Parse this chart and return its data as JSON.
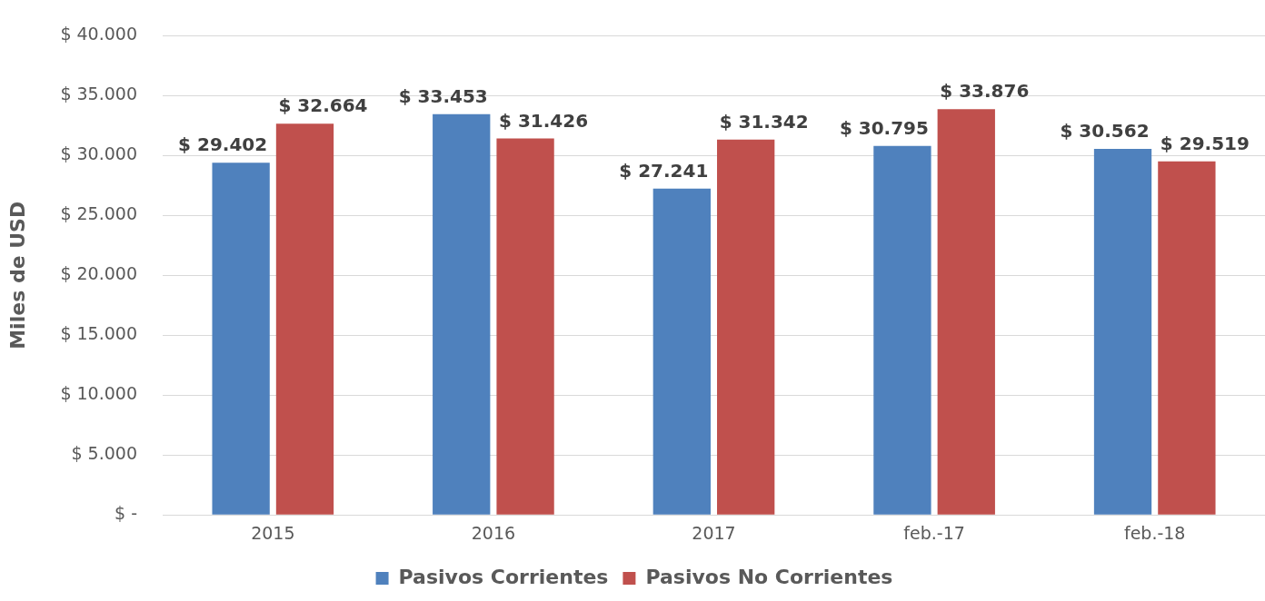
{
  "chart_data": {
    "type": "bar",
    "ylabel": "Miles de USD",
    "categories": [
      "2015",
      "2016",
      "2017",
      "feb.-17",
      "feb.-18"
    ],
    "series": [
      {
        "name": "Pasivos Corrientes",
        "color": "#4f81bd",
        "values": [
          29402,
          33453,
          27241,
          30795,
          30562
        ],
        "value_labels": [
          "$ 29.402",
          "$ 33.453",
          "$ 27.241",
          "$ 30.795",
          "$ 30.562"
        ]
      },
      {
        "name": "Pasivos No Corrientes",
        "color": "#c0504d",
        "values": [
          32664,
          31426,
          31342,
          33876,
          29519
        ],
        "value_labels": [
          "$ 32.664",
          "$ 31.426",
          "$ 31.342",
          "$ 33.876",
          "$ 29.519"
        ]
      }
    ],
    "ylim": [
      0,
      40000
    ],
    "yticks": [
      {
        "value": 0,
        "label": "$ -"
      },
      {
        "value": 5000,
        "label": "$ 5.000"
      },
      {
        "value": 10000,
        "label": "$ 10.000"
      },
      {
        "value": 15000,
        "label": "$ 15.000"
      },
      {
        "value": 20000,
        "label": "$ 20.000"
      },
      {
        "value": 25000,
        "label": "$ 25.000"
      },
      {
        "value": 30000,
        "label": "$ 30.000"
      },
      {
        "value": 35000,
        "label": "$ 35.000"
      },
      {
        "value": 40000,
        "label": "$ 40.000"
      }
    ],
    "grid": "y",
    "legend": "bottom"
  }
}
